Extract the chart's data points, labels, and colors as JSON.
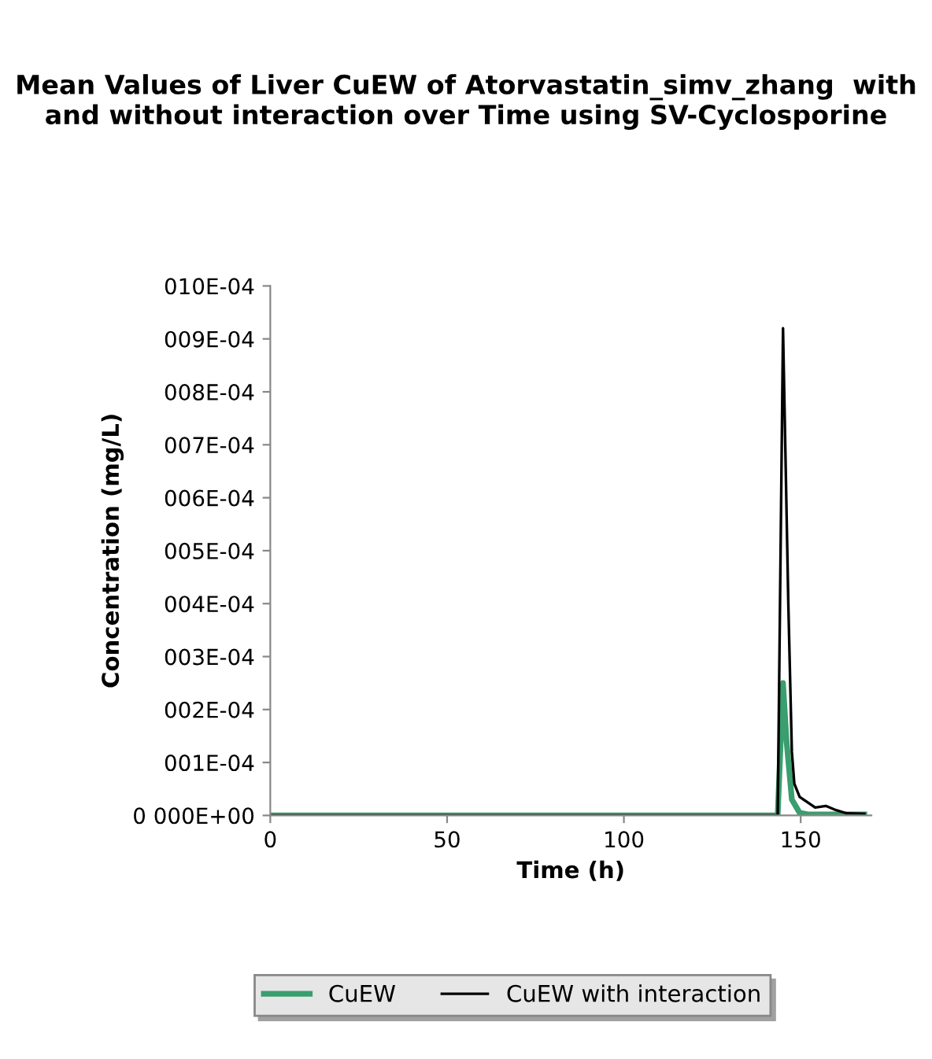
{
  "chart_data": {
    "type": "line",
    "title": "Mean Values of Liver CuEW of Atorvastatin_simv_zhang  with and without interaction over Time using SV-Cyclosporine",
    "xlabel": "Time (h)",
    "ylabel": "Concentration (mg/L)",
    "xlim": [
      0,
      170
    ],
    "xticks": [
      0,
      50,
      100,
      150
    ],
    "ylim": [
      0,
      0.001
    ],
    "yticks": [
      {
        "value": 0,
        "label": "0 000E+00"
      },
      {
        "value": 0.0001,
        "label": "001E-04"
      },
      {
        "value": 0.0002,
        "label": "002E-04"
      },
      {
        "value": 0.0003,
        "label": "003E-04"
      },
      {
        "value": 0.0004,
        "label": "004E-04"
      },
      {
        "value": 0.0005,
        "label": "005E-04"
      },
      {
        "value": 0.0006,
        "label": "006E-04"
      },
      {
        "value": 0.0007,
        "label": "007E-04"
      },
      {
        "value": 0.0008,
        "label": "008E-04"
      },
      {
        "value": 0.0009,
        "label": "009E-04"
      },
      {
        "value": 0.001,
        "label": "010E-04"
      }
    ],
    "grid": false,
    "legend": "bottom",
    "marker": "none",
    "line_style": "solid",
    "series": [
      {
        "name": "CuEW",
        "color": "#3a9e6e",
        "x": [
          0,
          143.5,
          145,
          146,
          147.5,
          149.7,
          152,
          160,
          168
        ],
        "values": [
          0,
          0,
          0.00025,
          0.00014,
          3e-05,
          5e-06,
          2e-06,
          2e-06,
          2e-06
        ]
      },
      {
        "name": "CuEW with interaction",
        "color": "#000000",
        "x": [
          0,
          143.5,
          145,
          146.5,
          147.5,
          148.2,
          149.7,
          154.1,
          157.1,
          160,
          163,
          168
        ],
        "values": [
          0,
          0,
          0.00092,
          0.0004,
          0.00012,
          6e-05,
          3.5e-05,
          1.5e-05,
          1.8e-05,
          1e-05,
          4e-06,
          3e-06
        ]
      }
    ]
  }
}
